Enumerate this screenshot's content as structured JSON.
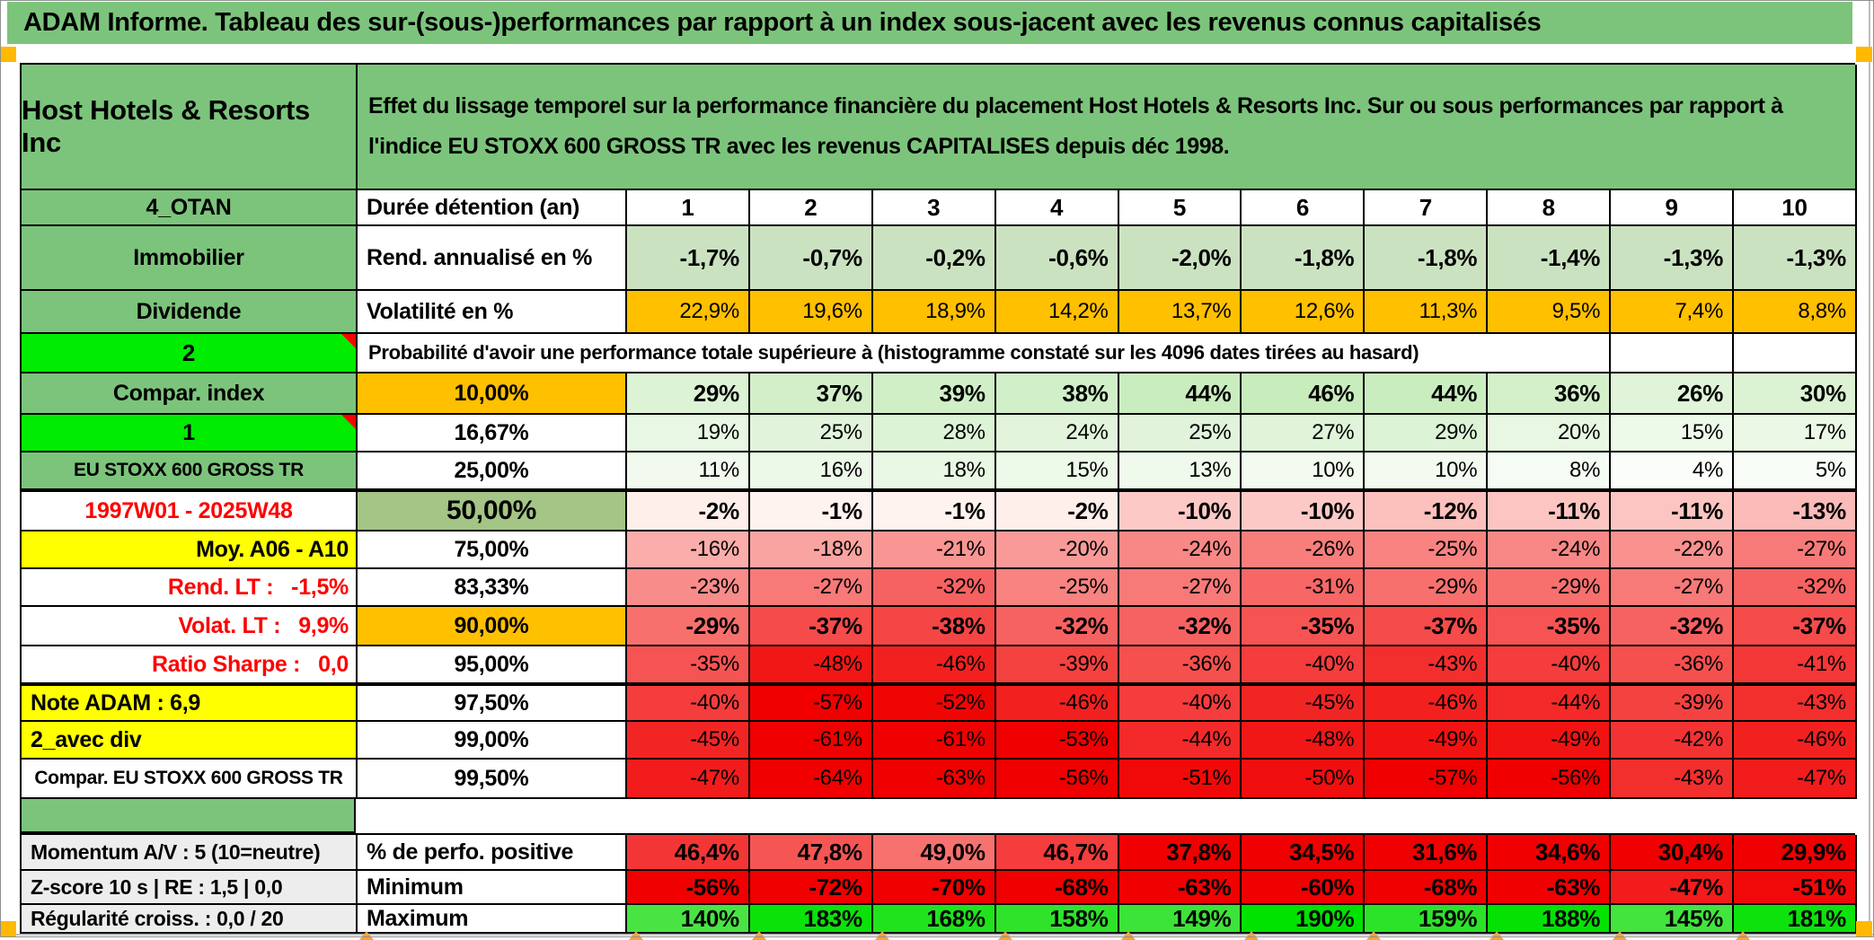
{
  "title": "ADAM Informe. Tableau des sur-(sous-)performances par rapport à un index sous-jacent avec les revenus connus capitalisés",
  "header": {
    "instrument": "Host Hotels & Resorts Inc",
    "description": "Effet du lissage temporel sur la performance financière du placement Host Hotels & Resorts Inc. Sur ou sous performances par rapport à l'indice EU STOXX 600 GROSS TR avec les revenus CAPITALISES depuis déc 1998."
  },
  "colors": {
    "header_green": "#7CC47C",
    "bright_green": "#00EC00",
    "orange": "#FFC000",
    "yellow": "#FFFF00",
    "sage_green": "#A4C585",
    "pale_green": "#CBE2C1",
    "label_gray": "#EDEDED",
    "red_text": "#FF0000",
    "corner_orange": "#FFB900",
    "flag_orange": "#F2A33C"
  },
  "duration_row": {
    "label": "4_OTAN",
    "metric": "Durée détention (an)",
    "years": [
      "1",
      "2",
      "3",
      "4",
      "5",
      "6",
      "7",
      "8",
      "9",
      "10"
    ]
  },
  "rows_top": [
    {
      "label": "Immobilier",
      "metric": "Rend. annualisé en %",
      "bg": "pale",
      "bold": true,
      "values": [
        "-1,7%",
        "-0,7%",
        "-0,2%",
        "-0,6%",
        "-2,0%",
        "-1,8%",
        "-1,8%",
        "-1,4%",
        "-1,3%",
        "-1,3%"
      ]
    },
    {
      "label": "Dividende",
      "metric": "Volatilité en %",
      "bg": "orange",
      "bold": false,
      "values": [
        "22,9%",
        "19,6%",
        "18,9%",
        "14,2%",
        "13,7%",
        "12,6%",
        "11,3%",
        "9,5%",
        "7,4%",
        "8,8%"
      ]
    }
  ],
  "banner": {
    "label": "2",
    "text": "Probabilité d'avoir une performance totale supérieure à (histogramme constaté sur les 4096 dates tirées au hasard)",
    "empty_cols": 2
  },
  "probability_rows": [
    {
      "label": "Compar. index",
      "label_bg": "green",
      "threshold": "10,00%",
      "threshold_bg": "orange",
      "bold": true,
      "values": [
        "29%",
        "37%",
        "39%",
        "38%",
        "44%",
        "46%",
        "44%",
        "36%",
        "26%",
        "30%"
      ]
    },
    {
      "label": "1",
      "label_bg": "bright",
      "marker": true,
      "threshold": "16,67%",
      "threshold_bg": "white",
      "values": [
        "19%",
        "25%",
        "28%",
        "24%",
        "25%",
        "27%",
        "29%",
        "20%",
        "15%",
        "17%"
      ]
    },
    {
      "label": "EU STOXX 600 GROSS TR",
      "label_bg": "green",
      "label_small": true,
      "threshold": "25,00%",
      "threshold_bg": "white",
      "values": [
        "11%",
        "16%",
        "18%",
        "15%",
        "13%",
        "10%",
        "10%",
        "8%",
        "4%",
        "5%"
      ]
    },
    {
      "label": "1997W01 - 2025W48",
      "label_bg": "white",
      "label_color": "red",
      "threshold": "50,00%",
      "threshold_bg": "sage",
      "threshold_big": true,
      "bold": true,
      "thick_top": true,
      "values": [
        "-2%",
        "-1%",
        "-1%",
        "-2%",
        "-10%",
        "-10%",
        "-12%",
        "-11%",
        "-11%",
        "-13%"
      ]
    },
    {
      "label": "Moy. A06 - A10",
      "label_bg": "yellow",
      "label_align": "right",
      "threshold": "75,00%",
      "threshold_bg": "white",
      "values": [
        "-16%",
        "-18%",
        "-21%",
        "-20%",
        "-24%",
        "-26%",
        "-25%",
        "-24%",
        "-22%",
        "-27%"
      ]
    },
    {
      "label": "Rend. LT :   -1,5%",
      "label_bg": "white",
      "label_color": "red",
      "label_align": "right",
      "threshold": "83,33%",
      "threshold_bg": "white",
      "values": [
        "-23%",
        "-27%",
        "-32%",
        "-25%",
        "-27%",
        "-31%",
        "-29%",
        "-29%",
        "-27%",
        "-32%"
      ]
    },
    {
      "label": "Volat. LT :   9,9%",
      "label_bg": "white",
      "label_color": "red",
      "label_align": "right",
      "threshold": "90,00%",
      "threshold_bg": "orange",
      "bold": true,
      "values": [
        "-29%",
        "-37%",
        "-38%",
        "-32%",
        "-32%",
        "-35%",
        "-37%",
        "-35%",
        "-32%",
        "-37%"
      ]
    },
    {
      "label": "Ratio Sharpe :   0,0",
      "label_bg": "white",
      "label_color": "red",
      "label_align": "right",
      "threshold": "95,00%",
      "threshold_bg": "white",
      "values": [
        "-35%",
        "-48%",
        "-46%",
        "-39%",
        "-36%",
        "-40%",
        "-43%",
        "-40%",
        "-36%",
        "-41%"
      ]
    },
    {
      "label": "Note ADAM : 6,9",
      "label_bg": "yellow",
      "label_align": "left",
      "threshold": "97,50%",
      "threshold_bg": "white",
      "thick_top": true,
      "values": [
        "-40%",
        "-57%",
        "-52%",
        "-46%",
        "-40%",
        "-45%",
        "-46%",
        "-44%",
        "-39%",
        "-43%"
      ]
    },
    {
      "label": "2_avec div",
      "label_bg": "yellow",
      "label_align": "left",
      "threshold": "99,00%",
      "threshold_bg": "white",
      "values": [
        "-45%",
        "-61%",
        "-61%",
        "-53%",
        "-44%",
        "-48%",
        "-49%",
        "-49%",
        "-42%",
        "-46%"
      ]
    },
    {
      "label": "Compar. EU STOXX 600 GROSS TR",
      "label_bg": "white",
      "label_small": true,
      "threshold": "99,50%",
      "threshold_bg": "white",
      "values": [
        "-47%",
        "-64%",
        "-63%",
        "-56%",
        "-51%",
        "-50%",
        "-57%",
        "-56%",
        "-43%",
        "-47%"
      ]
    }
  ],
  "summary_rows": [
    {
      "label": "Momentum A/V : 5 (10=neutre)",
      "metric": "% de perfo. positive",
      "scale": "perf",
      "values": [
        "46,4%",
        "47,8%",
        "49,0%",
        "46,7%",
        "37,8%",
        "34,5%",
        "31,6%",
        "34,6%",
        "30,4%",
        "29,9%"
      ]
    },
    {
      "label": "Z-score 10 s | RE : 1,5 | 0,0",
      "metric": "Minimum",
      "scale": "heat",
      "values": [
        "-56%",
        "-72%",
        "-70%",
        "-68%",
        "-63%",
        "-60%",
        "-68%",
        "-63%",
        "-47%",
        "-51%"
      ]
    },
    {
      "label": "Régularité croiss. : 0,0 / 20",
      "metric": "Maximum",
      "scale": "heat",
      "values": [
        "140%",
        "183%",
        "168%",
        "158%",
        "149%",
        "190%",
        "159%",
        "188%",
        "145%",
        "181%"
      ]
    }
  ]
}
